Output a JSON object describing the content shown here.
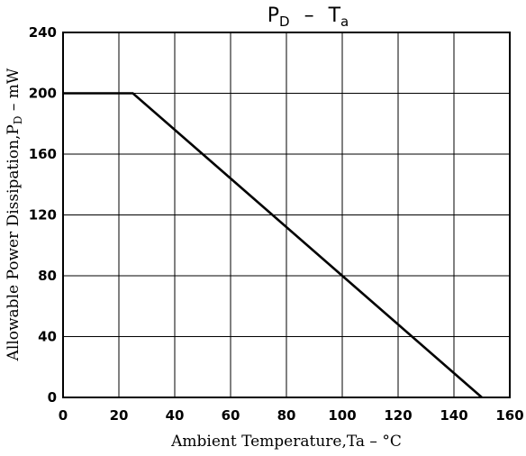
{
  "chart_data": {
    "type": "line",
    "title": {
      "main_1": "P",
      "sub_1": "D",
      "separator": "–",
      "main_2": "T",
      "sub_2": "a"
    },
    "xlabel": "Ambient Temperature,Ta – °C",
    "ylabel": {
      "main": "Allowable Power Dissipation,P",
      "sub": "D",
      "unit": " – mW"
    },
    "xlim": [
      0,
      160
    ],
    "ylim": [
      0,
      240
    ],
    "x_ticks": [
      0,
      20,
      40,
      60,
      80,
      100,
      120,
      140,
      160
    ],
    "y_ticks": [
      0,
      40,
      80,
      120,
      160,
      200,
      240
    ],
    "grid": true,
    "series": [
      {
        "x": [
          0,
          25,
          150
        ],
        "y": [
          200,
          200,
          0
        ]
      }
    ]
  }
}
